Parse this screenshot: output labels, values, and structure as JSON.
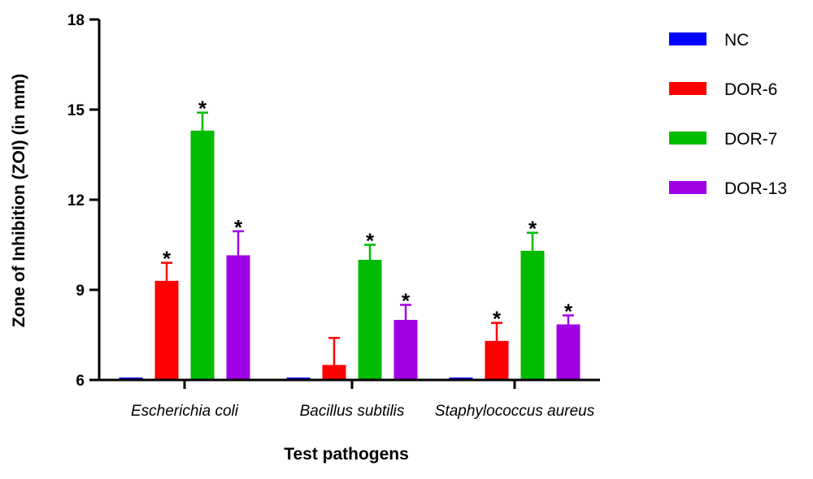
{
  "chart_data": {
    "type": "bar",
    "title": "",
    "xlabel": "Test pathogens",
    "ylabel": "Zone of Inhibition (ZOI) (in mm)",
    "ylim": [
      6,
      18
    ],
    "yticks": [
      6,
      9,
      12,
      15,
      18
    ],
    "categories": [
      "Escherichia coli",
      "Bacillus subtilis",
      "Staphylococcus aureus"
    ],
    "legend_position": "right",
    "grid": false,
    "series": [
      {
        "name": "NC",
        "color": "#0000ff",
        "values": [
          6.0,
          6.0,
          6.0
        ],
        "errors": [
          0,
          0,
          0
        ],
        "significant": [
          false,
          false,
          false
        ]
      },
      {
        "name": "DOR-6",
        "color": "#ff0000",
        "values": [
          9.3,
          6.5,
          7.3
        ],
        "errors": [
          0.6,
          0.9,
          0.6
        ],
        "significant": [
          true,
          false,
          true
        ]
      },
      {
        "name": "DOR-7",
        "color": "#00bb00",
        "values": [
          14.3,
          10.0,
          10.3
        ],
        "errors": [
          0.6,
          0.5,
          0.6
        ],
        "significant": [
          true,
          true,
          true
        ]
      },
      {
        "name": "DOR-13",
        "color": "#a000e6",
        "values": [
          10.15,
          8.0,
          7.85
        ],
        "errors": [
          0.8,
          0.5,
          0.3
        ],
        "significant": [
          true,
          true,
          true
        ]
      }
    ],
    "significance_marker": "*"
  }
}
